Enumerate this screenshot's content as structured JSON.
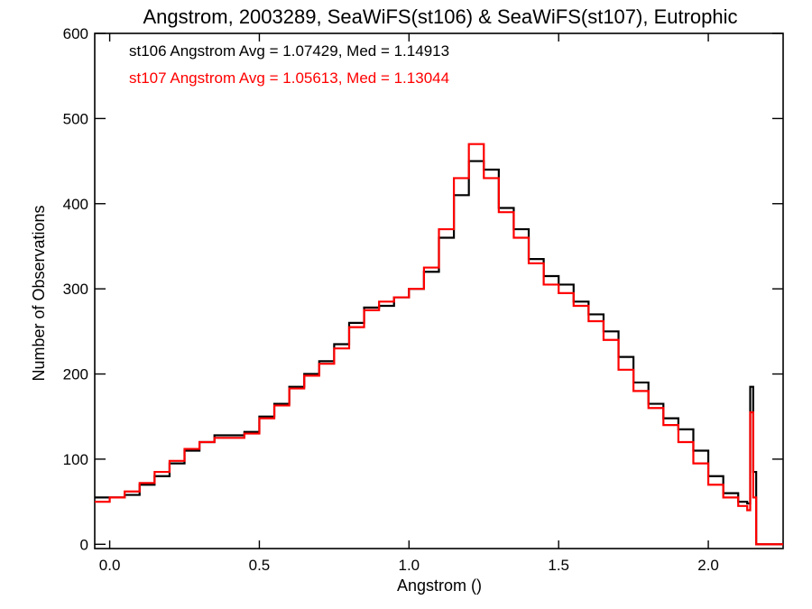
{
  "chart_data": {
    "type": "line",
    "title": "Angstrom, 2003289, SeaWiFS(st106) & SeaWiFS(st107), Eutrophic",
    "xlabel": "Angstrom ()",
    "ylabel": "Number of Observations",
    "xlim": [
      -0.05,
      2.25
    ],
    "ylim": [
      -5,
      600
    ],
    "x_ticks": [
      0.0,
      0.5,
      1.0,
      1.5,
      2.0
    ],
    "x_tick_labels": [
      "0.0",
      "0.5",
      "1.0",
      "1.5",
      "2.0"
    ],
    "y_ticks": [
      0,
      100,
      200,
      300,
      400,
      500,
      600
    ],
    "y_tick_labels": [
      "0",
      "100",
      "200",
      "300",
      "400",
      "500",
      "600"
    ],
    "grid": false,
    "style": "step histogram",
    "legend": {
      "placement": "top-left",
      "entries": [
        {
          "text": "st106 Angstrom Avg = 1.07429, Med = 1.14913",
          "color": "#000000"
        },
        {
          "text": "st107 Angstrom Avg = 1.05613, Med = 1.13044",
          "color": "#ff0000"
        }
      ]
    },
    "series": [
      {
        "color": "#000000",
        "x": [
          -0.05,
          0.0,
          0.05,
          0.1,
          0.15,
          0.2,
          0.25,
          0.3,
          0.35,
          0.4,
          0.45,
          0.5,
          0.55,
          0.6,
          0.65,
          0.7,
          0.75,
          0.8,
          0.85,
          0.9,
          0.95,
          1.0,
          1.05,
          1.1,
          1.15,
          1.2,
          1.25,
          1.3,
          1.35,
          1.4,
          1.45,
          1.5,
          1.55,
          1.6,
          1.65,
          1.7,
          1.75,
          1.8,
          1.85,
          1.9,
          1.95,
          2.0,
          2.05,
          2.1,
          2.13,
          2.14,
          2.15,
          2.16,
          2.25
        ],
        "values": [
          55,
          55,
          58,
          70,
          80,
          95,
          110,
          120,
          128,
          128,
          132,
          150,
          165,
          185,
          200,
          215,
          235,
          260,
          278,
          280,
          290,
          300,
          320,
          360,
          410,
          450,
          440,
          395,
          370,
          335,
          315,
          305,
          285,
          270,
          250,
          220,
          190,
          165,
          148,
          135,
          110,
          80,
          60,
          50,
          48,
          185,
          85,
          0,
          0
        ]
      },
      {
        "color": "#ff0000",
        "x": [
          -0.05,
          0.0,
          0.05,
          0.1,
          0.15,
          0.2,
          0.25,
          0.3,
          0.35,
          0.4,
          0.45,
          0.5,
          0.55,
          0.6,
          0.65,
          0.7,
          0.75,
          0.8,
          0.85,
          0.9,
          0.95,
          1.0,
          1.05,
          1.1,
          1.15,
          1.2,
          1.25,
          1.3,
          1.35,
          1.4,
          1.45,
          1.5,
          1.55,
          1.6,
          1.65,
          1.7,
          1.75,
          1.8,
          1.85,
          1.9,
          1.95,
          2.0,
          2.05,
          2.1,
          2.13,
          2.14,
          2.15,
          2.16,
          2.25
        ],
        "values": [
          50,
          55,
          62,
          72,
          85,
          98,
          112,
          120,
          125,
          125,
          130,
          148,
          163,
          183,
          198,
          212,
          230,
          255,
          275,
          285,
          290,
          300,
          325,
          370,
          430,
          470,
          430,
          390,
          360,
          330,
          305,
          295,
          280,
          262,
          240,
          205,
          180,
          160,
          140,
          120,
          95,
          70,
          55,
          45,
          40,
          155,
          55,
          0,
          0
        ]
      }
    ]
  }
}
